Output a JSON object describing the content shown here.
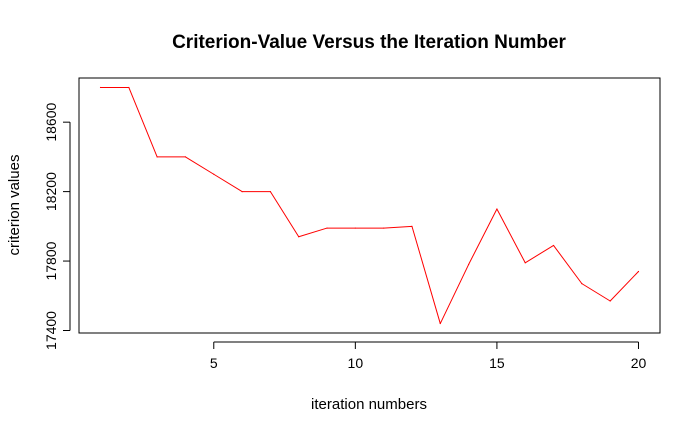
{
  "chart_data": {
    "type": "line",
    "title": "Criterion-Value Versus the Iteration Number",
    "xlabel": "iteration numbers",
    "ylabel": "criterion values",
    "x": [
      1,
      2,
      3,
      4,
      5,
      6,
      7,
      8,
      9,
      10,
      11,
      12,
      13,
      14,
      15,
      16,
      17,
      18,
      19,
      20
    ],
    "series": [
      {
        "values": [
          18800,
          18800,
          18400,
          18400,
          18300,
          18200,
          18200,
          17940,
          17990,
          17990,
          17990,
          18000,
          17440,
          17780,
          18100,
          17790,
          17890,
          17670,
          17570,
          17740
        ],
        "color": "#ff0000"
      }
    ],
    "xticks": [
      5,
      10,
      15,
      20
    ],
    "xtick_labels": [
      "5",
      "10",
      "15",
      "20"
    ],
    "yticks": [
      17400,
      17800,
      18200,
      18600
    ],
    "ytick_labels": [
      "17400",
      "17800",
      "18200",
      "18600"
    ],
    "xlim": [
      0.24,
      20.76
    ],
    "ylim": [
      17385.6,
      18854.4
    ],
    "grid": false,
    "legend": "none",
    "box": true
  }
}
